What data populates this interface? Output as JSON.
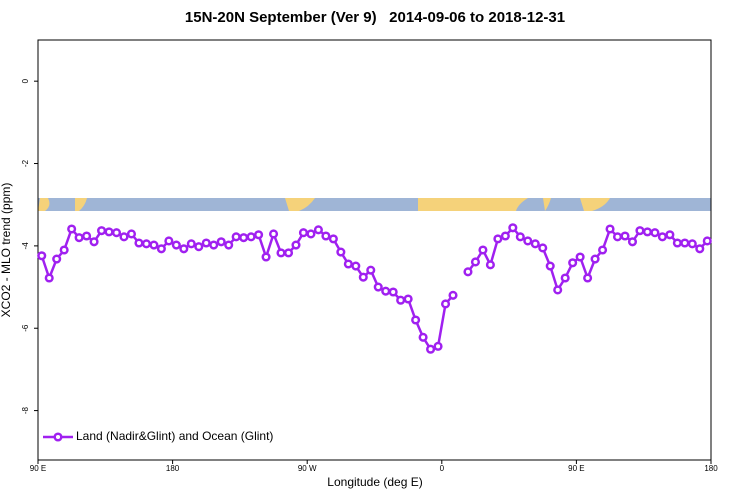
{
  "chart_data": {
    "type": "line",
    "title": "15N-20N September (Ver 9)   2014-09-06 to 2018-12-31",
    "x_label": "Longitude (deg E)",
    "y_label": "XCO2 - MLO trend (ppm)",
    "xlim": [
      90,
      540
    ],
    "ylim": [
      -9.2,
      1
    ],
    "xticks": [
      {
        "value": 90,
        "label": "90 E"
      },
      {
        "value": 180,
        "label": "180"
      },
      {
        "value": 270,
        "label": "90 W"
      },
      {
        "value": 360,
        "label": "0"
      },
      {
        "value": 450,
        "label": "90 E"
      },
      {
        "value": 540,
        "label": "180"
      }
    ],
    "yticks": [
      0,
      -2,
      -4,
      -6,
      -8
    ],
    "legend": "bottom-left",
    "x": [
      92.5,
      97.5,
      102.5,
      107.5,
      112.5,
      117.5,
      122.5,
      127.5,
      132.5,
      137.5,
      142.5,
      147.5,
      152.5,
      157.5,
      162.5,
      167.5,
      172.5,
      177.5,
      182.5,
      187.5,
      192.5,
      197.5,
      202.5,
      207.5,
      212.5,
      217.5,
      222.5,
      227.5,
      232.5,
      237.5,
      242.5,
      247.5,
      252.5,
      257.5,
      262.5,
      267.5,
      272.5,
      277.5,
      282.5,
      287.5,
      292.5,
      297.5,
      302.5,
      307.5,
      312.5,
      317.5,
      322.5,
      327.5,
      332.5,
      337.5,
      342.5,
      347.5,
      352.5,
      357.5,
      362.5,
      367.5,
      372.5,
      377.5,
      382.5,
      387.5,
      392.5,
      397.5,
      402.5,
      407.5,
      412.5,
      417.5,
      422.5,
      427.5,
      432.5,
      437.5,
      442.5,
      447.5,
      452.5,
      457.5,
      462.5,
      467.5,
      472.5,
      477.5,
      482.5,
      487.5,
      492.5,
      497.5,
      502.5,
      507.5,
      512.5,
      517.5,
      522.5,
      527.5,
      532.5,
      537.5
    ],
    "series": [
      {
        "name": "Land (Nadir&Glint) and Ocean (Glint)",
        "color": "#a020f0",
        "values": [
          -4.24,
          -4.78,
          -4.32,
          -4.1,
          -3.59,
          -3.8,
          -3.76,
          -3.9,
          -3.63,
          -3.66,
          -3.68,
          -3.78,
          -3.71,
          -3.93,
          -3.95,
          -3.98,
          -4.07,
          -3.88,
          -3.98,
          -4.07,
          -3.95,
          -4.02,
          -3.93,
          -3.98,
          -3.9,
          -3.98,
          -3.78,
          -3.8,
          -3.78,
          -3.73,
          -4.27,
          -3.71,
          -4.17,
          -4.17,
          -3.98,
          -3.68,
          -3.71,
          -3.61,
          -3.76,
          -3.83,
          -4.15,
          -4.44,
          -4.49,
          -4.76,
          -4.59,
          -5.0,
          -5.1,
          -5.12,
          -5.32,
          -5.29,
          -5.8,
          -6.22,
          -6.51,
          -6.44,
          -5.41,
          -5.2,
          null,
          -4.63,
          -4.39,
          -4.1,
          -4.46,
          -3.83,
          -3.76,
          -3.56,
          -3.78,
          -3.88,
          -3.95,
          -4.05,
          -4.49,
          -5.07,
          -4.78,
          -4.41,
          -4.27,
          -4.78,
          -4.32,
          -4.1,
          -3.59,
          -3.78,
          -3.76,
          -3.9,
          -3.63,
          -3.66,
          -3.68,
          -3.78,
          -3.73,
          -3.93,
          -3.93,
          -3.95,
          -4.07,
          -3.88
        ]
      }
    ]
  }
}
